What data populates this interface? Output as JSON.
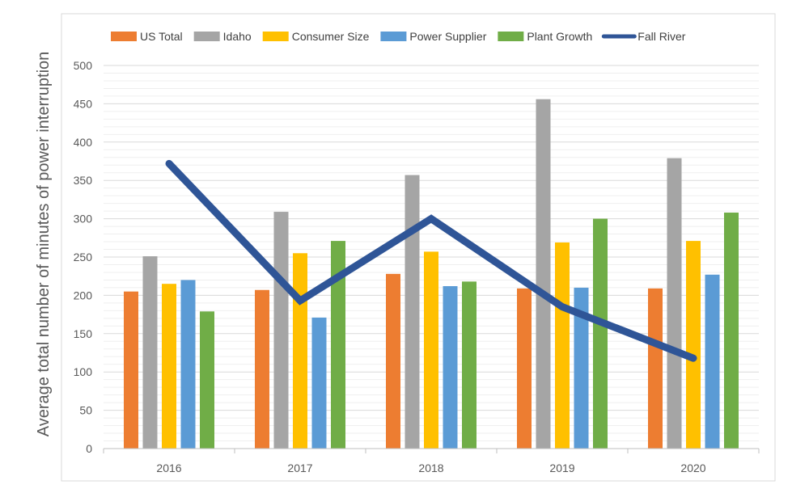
{
  "chart_data": {
    "type": "bar",
    "title": "",
    "xlabel": "",
    "ylabel": "Average total number of minutes of power interruption",
    "categories": [
      "2016",
      "2017",
      "2018",
      "2019",
      "2020"
    ],
    "ylim": [
      0,
      500
    ],
    "yticks": [
      0,
      50,
      100,
      150,
      200,
      250,
      300,
      350,
      400,
      450,
      500
    ],
    "minor_gridlines": true,
    "legend_position": "top",
    "series": [
      {
        "name": "US Total",
        "type": "bar",
        "color": "#ED7D31",
        "values": [
          205,
          207,
          228,
          209,
          209
        ]
      },
      {
        "name": "Idaho",
        "type": "bar",
        "color": "#A5A5A5",
        "values": [
          251,
          309,
          357,
          456,
          379
        ]
      },
      {
        "name": "Consumer Size",
        "type": "bar",
        "color": "#FFC000",
        "values": [
          215,
          255,
          257,
          269,
          271
        ]
      },
      {
        "name": "Power Supplier",
        "type": "bar",
        "color": "#5B9BD5",
        "values": [
          220,
          171,
          212,
          210,
          227
        ]
      },
      {
        "name": "Plant Growth",
        "type": "bar",
        "color": "#70AD47",
        "values": [
          179,
          271,
          218,
          300,
          308
        ]
      },
      {
        "name": "Fall River",
        "type": "line",
        "color": "#2F5597",
        "values": [
          372,
          193,
          300,
          185,
          118
        ]
      }
    ]
  }
}
